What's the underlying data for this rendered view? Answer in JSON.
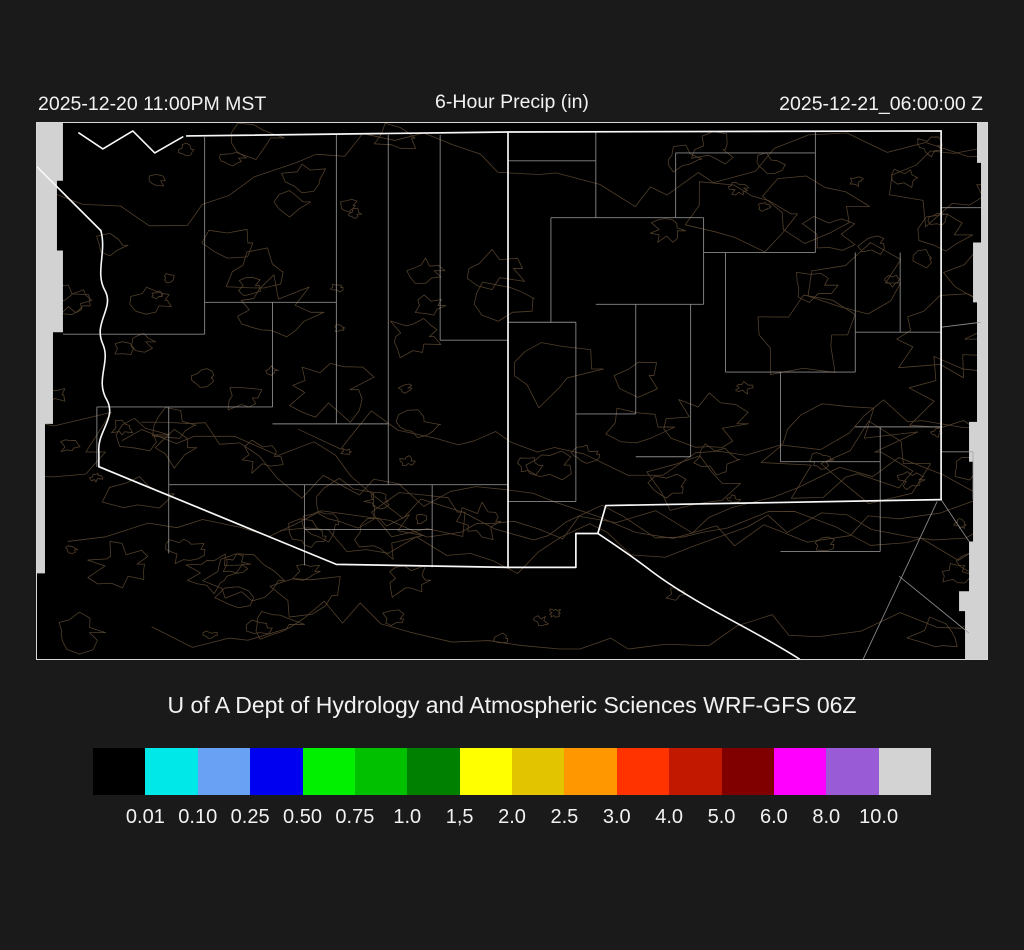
{
  "header": {
    "timestamp_local": "2025-12-20 11:00PM MST",
    "title": "6-Hour Precip (in)",
    "timestamp_utc": "2025-12-21_06:00:00 Z"
  },
  "caption": "U of A Dept of Hydrology and Atmospheric Sciences WRF-GFS 06Z",
  "colorbar": {
    "units": "in",
    "colors": [
      "#000000",
      "#00E8E8",
      "#69A1F5",
      "#0000F0",
      "#00F000",
      "#00C000",
      "#008000",
      "#FFFF00",
      "#E3C400",
      "#FF9800",
      "#FF3300",
      "#C21800",
      "#800000",
      "#FF00FF",
      "#995CD6",
      "#D3D3D3"
    ],
    "labels": [
      "0.01",
      "0.10",
      "0.25",
      "0.50",
      "0.75",
      "1.0",
      "1,5",
      "2.0",
      "2.5",
      "3.0",
      "4.0",
      "5.0",
      "6.0",
      "8.0",
      "10.0"
    ]
  },
  "map_colors": {
    "background": "#000000",
    "state_border": "#F8F8F8",
    "county_border": "#A0A0A0",
    "terrain_contour": "#55422D",
    "no_data_edge": "#D2D2D2",
    "page_background": "#1A1A1A"
  }
}
